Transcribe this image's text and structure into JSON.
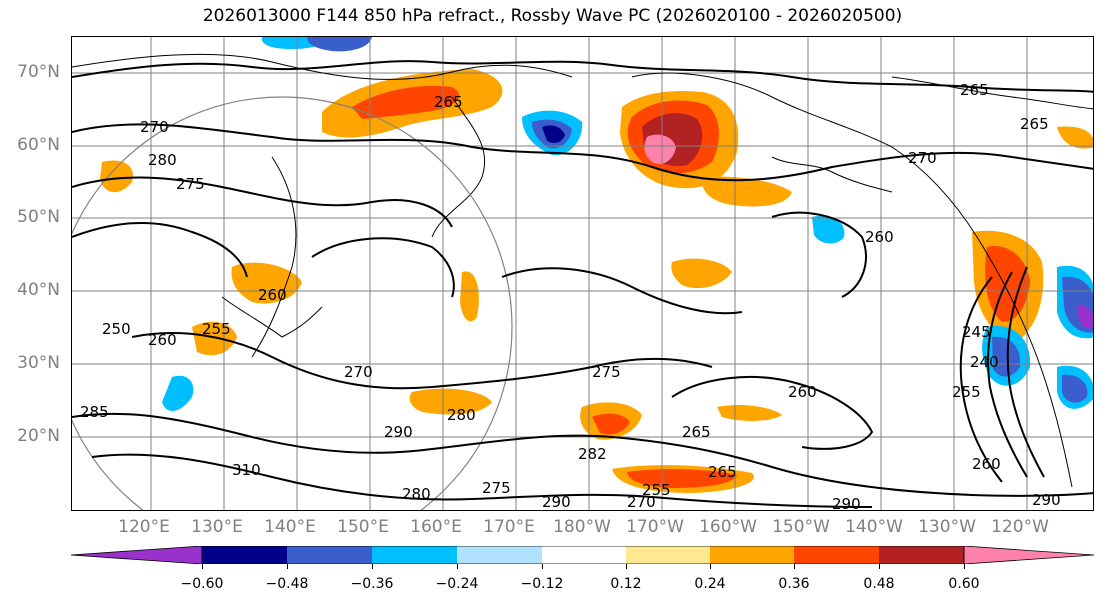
{
  "title": "2026013000 F144 850 hPa refract., Rossby Wave PC (2026020100 - 2026020500)",
  "lat_labels": [
    "70°N",
    "60°N",
    "50°N",
    "40°N",
    "30°N",
    "20°N"
  ],
  "lon_labels": [
    "120°E",
    "130°E",
    "140°E",
    "150°E",
    "160°E",
    "170°E",
    "180°W",
    "170°W",
    "160°W",
    "150°W",
    "140°W",
    "130°W",
    "120°W"
  ],
  "contour_labels": [
    "265",
    "265",
    "265",
    "270",
    "270",
    "270",
    "280",
    "275",
    "260",
    "260",
    "250",
    "255",
    "260",
    "270",
    "275",
    "280",
    "290",
    "310",
    "290",
    "285",
    "280",
    "275",
    "282",
    "290",
    "265",
    "260",
    "265",
    "245",
    "240",
    "255",
    "260",
    "290",
    "255"
  ],
  "colorbar": {
    "ticks": [
      "−0.60",
      "−0.48",
      "−0.36",
      "−0.24",
      "−0.12",
      "0.12",
      "0.24",
      "0.36",
      "0.48",
      "0.60"
    ],
    "colors": [
      "#9932cc",
      "#00008b",
      "#3a5fcd",
      "#00bfff",
      "#b0e2ff",
      "#ffffff",
      "#ffe990",
      "#ffa500",
      "#ff4500",
      "#b22222",
      "#ff82ab"
    ]
  },
  "colors": {
    "grid": "#808080",
    "contour": "#000000",
    "tick_label": "#808080"
  }
}
